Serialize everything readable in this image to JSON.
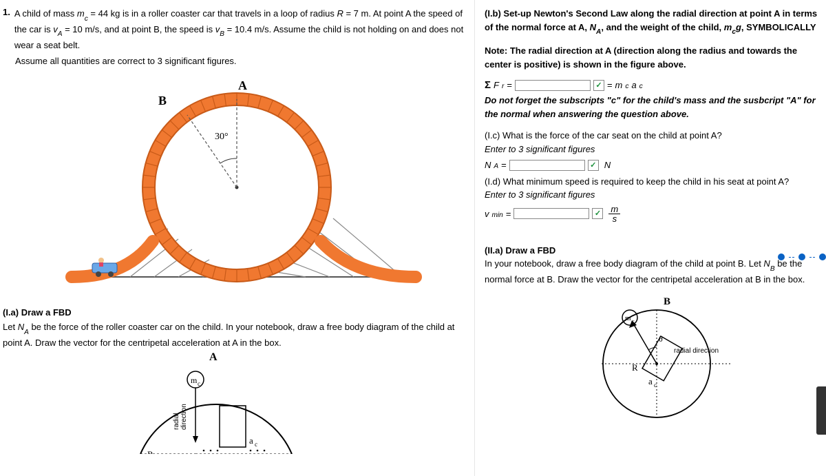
{
  "q_num": "1.",
  "q_text_pre": "A child of mass ",
  "m_eq": "m",
  "m_sub": "c",
  "m_val": " = 44 kg is in a roller coaster car that travels in a loop of radius ",
  "r_sym": "R",
  "r_val": " = 7 m. At point A the speed of the car is ",
  "va": "v",
  "va_sub": "A",
  "va_val": " = 10 m/s, and at point B, the speed is ",
  "vb": "v",
  "vb_sub": "B",
  "vb_val": " = 10.4 m/s.  Assume the child is not holding on and does not wear a seat belt.",
  "assume": "Assume all quantities are correct to 3 significant figures.",
  "loop": {
    "label_A": "A",
    "label_B": "B",
    "angle": "30°",
    "track_color": "#f07830",
    "rail_color": "#c85a18",
    "grid_color": "#888"
  },
  "Ia_head": "(I.a) Draw a FBD",
  "Ia_text_pre": "Let ",
  "Ia_NA": "N",
  "Ia_NA_sub": "A",
  "Ia_text_post": " be the force of the roller coaster car on the child. In your notebook, draw a free body diagram of the child at point A. Draw the vector for the centripetal acceleration at A in the box.",
  "fbdA": {
    "label_A": "A",
    "label_m": "m",
    "label_m_sub": "c",
    "label_ac": "a",
    "label_ac_sub": "c",
    "label_rad1": "radial",
    "label_rad2": "direction",
    "label_R": "R"
  },
  "Ib_head": "(I.b) Set-up Newton's Second Law along the radial direction at point A in terms of the normal force at A, ",
  "Ib_NA": "N",
  "Ib_NA_sub": "A",
  "Ib_head2": ", and the weight of the child, ",
  "Ib_mg": "m",
  "Ib_mg_sub": "c",
  "Ib_g": "g",
  "Ib_head3": ", SYMBOLICALLY",
  "Ib_note": "Note: The radial direction at A (direction along the radius and towards the center is positive) is shown in the figure above.",
  "Ib_sigma": "Σ",
  "Ib_F": "F",
  "Ib_r": "r",
  "Ib_eq": " = ",
  "Ib_rhs_pre": " = ",
  "Ib_rhs_m": "m",
  "Ib_rhs_m_sub": "c",
  "Ib_rhs_a": "a",
  "Ib_rhs_a_sub": "c",
  "Ib_warn": "Do not forget the subscripts \"c\" for the child's mass and the susbcript \"A\" for the normal when answering the question above.",
  "Ic_q": "(I.c) What is the force of the car seat on the child at point A?",
  "Ic_enter": "Enter to 3 significant figures",
  "Ic_NA": "N",
  "Ic_NA_sub": "A",
  "Ic_unit": "N",
  "Id_q": "(I.d) What minimum speed is required to keep the child in his seat at point A?",
  "Id_enter": "Enter to 3 significant figures",
  "Id_v": "v",
  "Id_v_sub": "min",
  "Id_unit_num": "m",
  "Id_unit_den": "s",
  "IIa_head": "(II.a) Draw a FBD",
  "IIa_text": "In your notebook, draw a free body diagram of the child at point B. Let ",
  "IIa_NB": "N",
  "IIa_NB_sub": "B",
  "IIa_text2": " be the normal force at B. Draw the vector for the centripetal acceleration at B in the box.",
  "fbdB": {
    "label_B": "B",
    "label_m": "m",
    "label_m_sub": "c",
    "label_theta": "θ",
    "label_rad": "radial direction",
    "label_R": "R",
    "label_ac": "a",
    "label_ac_sub": "c"
  },
  "pager_colors": {
    "active": "#0a62c4",
    "mid": "#0a62c4"
  },
  "check_mark": "✓"
}
